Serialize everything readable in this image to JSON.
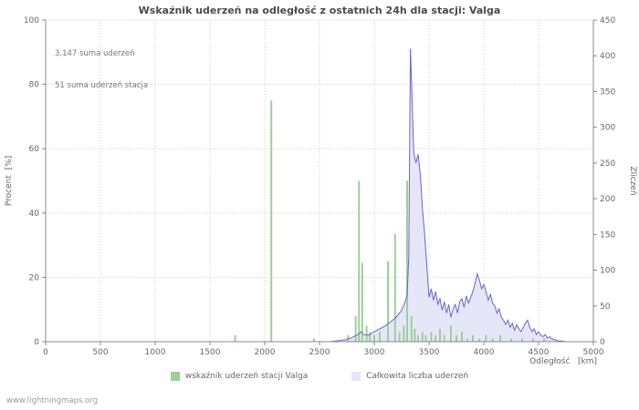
{
  "footer": "www.lightningmaps.org",
  "chart_data": {
    "type": "combo (bar + area line)",
    "title": "Wskaźnik uderzeń na odległość z ostatnich 24h dla stacji: Valga",
    "annotations": [
      "3,147 suma uderzeń",
      "51 suma uderzeń stacja"
    ],
    "grid": true,
    "legend_position": "bottom",
    "x_axis": {
      "label": "Odległość   [km]",
      "range": [
        0,
        5000
      ],
      "ticks": [
        0,
        500,
        1000,
        1500,
        2000,
        2500,
        3000,
        3500,
        4000,
        4500,
        5000
      ]
    },
    "left_axis": {
      "label": "Procent  [%]",
      "range": [
        0,
        100
      ],
      "ticks": [
        0,
        20,
        40,
        60,
        80,
        100
      ]
    },
    "right_axis": {
      "label": "Zliczeń",
      "range": [
        0,
        450
      ],
      "ticks": [
        0,
        50,
        100,
        150,
        200,
        250,
        300,
        350,
        400,
        450
      ]
    },
    "series": [
      {
        "name": "wskaźnik uderzeń stacji Valga",
        "type": "bar",
        "axis": "left",
        "color": "#9fce99",
        "points": [
          [
            1730,
            2
          ],
          [
            2060,
            75
          ],
          [
            2450,
            1
          ],
          [
            2760,
            2
          ],
          [
            2830,
            8
          ],
          [
            2860,
            50
          ],
          [
            2890,
            24.5
          ],
          [
            2930,
            5
          ],
          [
            2960,
            3
          ],
          [
            3000,
            2
          ],
          [
            3050,
            3
          ],
          [
            3125,
            25
          ],
          [
            3190,
            33.5
          ],
          [
            3230,
            3
          ],
          [
            3270,
            5
          ],
          [
            3300,
            50
          ],
          [
            3340,
            8
          ],
          [
            3370,
            4
          ],
          [
            3400,
            2
          ],
          [
            3440,
            3
          ],
          [
            3470,
            2
          ],
          [
            3520,
            3
          ],
          [
            3560,
            2
          ],
          [
            3600,
            4
          ],
          [
            3640,
            2
          ],
          [
            3700,
            5
          ],
          [
            3750,
            2
          ],
          [
            3800,
            3
          ],
          [
            3850,
            1
          ],
          [
            3900,
            2
          ],
          [
            3960,
            1
          ],
          [
            4020,
            2
          ],
          [
            4080,
            1
          ],
          [
            4150,
            2
          ],
          [
            4250,
            1
          ],
          [
            4350,
            1
          ],
          [
            4450,
            1
          ],
          [
            4550,
            1
          ]
        ]
      },
      {
        "name": "Całkowita liczba uderzeń",
        "type": "area",
        "axis": "right",
        "line_color": "#6666cc",
        "fill_color": "#e6e6f9",
        "points": [
          [
            0,
            0
          ],
          [
            2600,
            0
          ],
          [
            2650,
            1
          ],
          [
            2700,
            2
          ],
          [
            2750,
            3
          ],
          [
            2800,
            6
          ],
          [
            2850,
            10
          ],
          [
            2880,
            14
          ],
          [
            2900,
            10
          ],
          [
            2950,
            9
          ],
          [
            3000,
            14
          ],
          [
            3050,
            18
          ],
          [
            3100,
            22
          ],
          [
            3150,
            28
          ],
          [
            3200,
            34
          ],
          [
            3250,
            44
          ],
          [
            3280,
            55
          ],
          [
            3300,
            65
          ],
          [
            3315,
            120
          ],
          [
            3330,
            410
          ],
          [
            3345,
            340
          ],
          [
            3360,
            265
          ],
          [
            3380,
            250
          ],
          [
            3400,
            262
          ],
          [
            3420,
            235
          ],
          [
            3440,
            185
          ],
          [
            3460,
            150
          ],
          [
            3480,
            105
          ],
          [
            3500,
            62
          ],
          [
            3520,
            74
          ],
          [
            3540,
            58
          ],
          [
            3560,
            70
          ],
          [
            3580,
            52
          ],
          [
            3600,
            60
          ],
          [
            3620,
            44
          ],
          [
            3640,
            56
          ],
          [
            3660,
            40
          ],
          [
            3680,
            52
          ],
          [
            3700,
            34
          ],
          [
            3720,
            46
          ],
          [
            3740,
            52
          ],
          [
            3760,
            40
          ],
          [
            3780,
            56
          ],
          [
            3800,
            60
          ],
          [
            3820,
            48
          ],
          [
            3840,
            64
          ],
          [
            3860,
            54
          ],
          [
            3880,
            62
          ],
          [
            3900,
            70
          ],
          [
            3920,
            82
          ],
          [
            3940,
            95
          ],
          [
            3960,
            86
          ],
          [
            3980,
            74
          ],
          [
            4000,
            80
          ],
          [
            4020,
            70
          ],
          [
            4040,
            58
          ],
          [
            4060,
            66
          ],
          [
            4080,
            54
          ],
          [
            4100,
            50
          ],
          [
            4120,
            40
          ],
          [
            4140,
            46
          ],
          [
            4160,
            34
          ],
          [
            4180,
            30
          ],
          [
            4200,
            24
          ],
          [
            4220,
            30
          ],
          [
            4240,
            20
          ],
          [
            4260,
            26
          ],
          [
            4280,
            16
          ],
          [
            4300,
            24
          ],
          [
            4320,
            18
          ],
          [
            4340,
            14
          ],
          [
            4360,
            20
          ],
          [
            4380,
            26
          ],
          [
            4400,
            30
          ],
          [
            4420,
            20
          ],
          [
            4440,
            14
          ],
          [
            4460,
            18
          ],
          [
            4480,
            10
          ],
          [
            4500,
            14
          ],
          [
            4520,
            9
          ],
          [
            4540,
            7
          ],
          [
            4560,
            10
          ],
          [
            4580,
            5
          ],
          [
            4600,
            7
          ],
          [
            4620,
            4
          ],
          [
            4640,
            3
          ],
          [
            4660,
            2
          ],
          [
            4680,
            1
          ],
          [
            4700,
            1
          ],
          [
            4750,
            0
          ],
          [
            5000,
            0
          ]
        ]
      }
    ]
  }
}
